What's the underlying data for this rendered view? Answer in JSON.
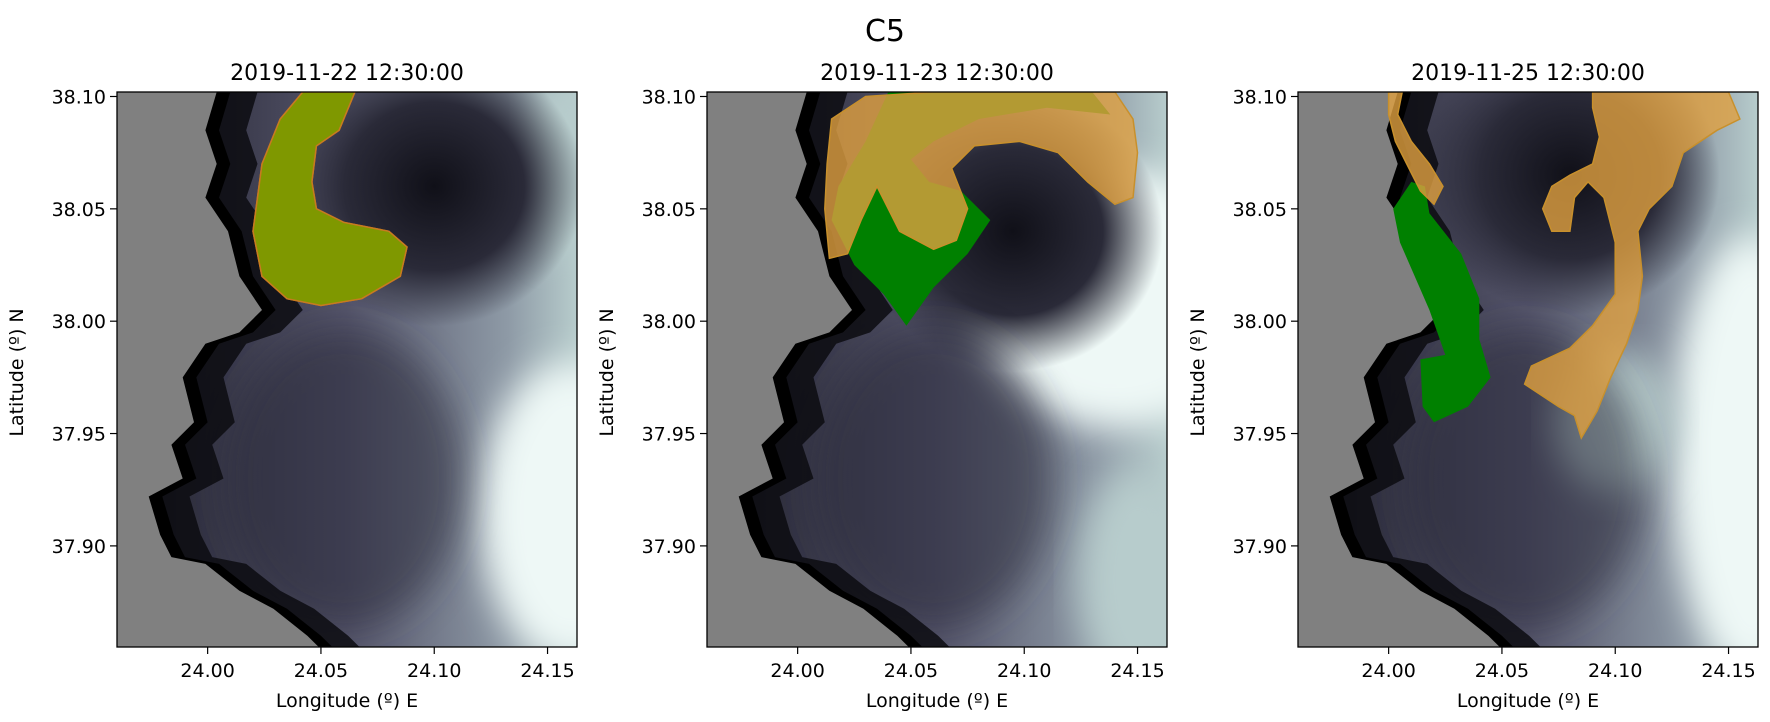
{
  "figure": {
    "suptitle": "C5",
    "xlabel": "Longitude (º) E",
    "ylabel": "Latitude (º) N",
    "colors": {
      "land": "#808080",
      "eddy_dark": "#1c1c26",
      "water_mid": "#55556b",
      "water_light": "#b7cccc",
      "water_lightest": "#eef8f6",
      "patch_green": "#008000",
      "patch_orange": "#e0a040",
      "patch_overlap": "#7f9800"
    }
  },
  "chart_data": [
    {
      "type": "map",
      "title": "2019-11-22 12:30:00",
      "xlim": [
        23.96,
        24.163
      ],
      "ylim": [
        37.855,
        38.102
      ],
      "xticks": [
        "24.00",
        "24.05",
        "24.10",
        "24.15"
      ],
      "yticks": [
        "37.90",
        "37.95",
        "38.00",
        "38.05",
        "38.10"
      ],
      "regions": [
        {
          "name": "green",
          "color": "#7f9800",
          "points": [
            [
              24.042,
              38.102
            ],
            [
              24.065,
              38.102
            ],
            [
              24.058,
              38.085
            ],
            [
              24.048,
              38.078
            ],
            [
              24.046,
              38.062
            ],
            [
              24.048,
              38.05
            ],
            [
              24.06,
              38.044
            ],
            [
              24.08,
              38.04
            ],
            [
              24.088,
              38.033
            ],
            [
              24.085,
              38.02
            ],
            [
              24.068,
              38.01
            ],
            [
              24.05,
              38.007
            ],
            [
              24.035,
              38.01
            ],
            [
              24.024,
              38.02
            ],
            [
              24.02,
              38.04
            ],
            [
              24.024,
              38.07
            ],
            [
              24.032,
              38.09
            ]
          ]
        },
        {
          "name": "orange",
          "color": "#7f9800",
          "points": [
            [
              24.042,
              38.102
            ],
            [
              24.065,
              38.102
            ],
            [
              24.058,
              38.085
            ],
            [
              24.048,
              38.078
            ],
            [
              24.046,
              38.062
            ],
            [
              24.048,
              38.05
            ],
            [
              24.06,
              38.044
            ],
            [
              24.08,
              38.04
            ],
            [
              24.088,
              38.033
            ],
            [
              24.085,
              38.02
            ],
            [
              24.068,
              38.01
            ],
            [
              24.05,
              38.007
            ],
            [
              24.035,
              38.01
            ],
            [
              24.024,
              38.02
            ],
            [
              24.02,
              38.04
            ],
            [
              24.024,
              38.07
            ],
            [
              24.032,
              38.09
            ]
          ]
        }
      ]
    },
    {
      "type": "map",
      "title": "2019-11-23 12:30:00",
      "xlim": [
        23.96,
        24.163
      ],
      "ylim": [
        37.855,
        38.102
      ],
      "xticks": [
        "24.00",
        "24.05",
        "24.10",
        "24.15"
      ],
      "yticks": [
        "37.90",
        "37.95",
        "38.00",
        "38.05",
        "38.10"
      ],
      "regions": [
        {
          "name": "green",
          "color": "#008000",
          "points": [
            [
              24.04,
              38.102
            ],
            [
              24.13,
              38.102
            ],
            [
              24.138,
              38.092
            ],
            [
              24.11,
              38.095
            ],
            [
              24.08,
              38.09
            ],
            [
              24.06,
              38.08
            ],
            [
              24.05,
              38.072
            ],
            [
              24.058,
              38.062
            ],
            [
              24.072,
              38.058
            ],
            [
              24.085,
              38.045
            ],
            [
              24.075,
              38.03
            ],
            [
              24.06,
              38.015
            ],
            [
              24.048,
              37.998
            ],
            [
              24.038,
              38.012
            ],
            [
              24.025,
              38.025
            ],
            [
              24.015,
              38.045
            ],
            [
              24.018,
              38.06
            ],
            [
              24.03,
              38.08
            ]
          ]
        },
        {
          "name": "orange",
          "color": "#e0a040",
          "points": [
            [
              24.015,
              38.09
            ],
            [
              24.03,
              38.1
            ],
            [
              24.06,
              38.102
            ],
            [
              24.1,
              38.102
            ],
            [
              24.14,
              38.102
            ],
            [
              24.148,
              38.09
            ],
            [
              24.15,
              38.075
            ],
            [
              24.148,
              38.055
            ],
            [
              24.14,
              38.052
            ],
            [
              24.128,
              38.062
            ],
            [
              24.115,
              38.075
            ],
            [
              24.098,
              38.08
            ],
            [
              24.078,
              38.078
            ],
            [
              24.068,
              38.068
            ],
            [
              24.075,
              38.05
            ],
            [
              24.07,
              38.036
            ],
            [
              24.06,
              38.032
            ],
            [
              24.045,
              38.04
            ],
            [
              24.035,
              38.06
            ],
            [
              24.028,
              38.045
            ],
            [
              24.022,
              38.03
            ],
            [
              24.014,
              38.028
            ],
            [
              24.012,
              38.05
            ],
            [
              24.013,
              38.07
            ]
          ]
        }
      ]
    },
    {
      "type": "map",
      "title": "2019-11-25 12:30:00",
      "xlim": [
        23.96,
        24.163
      ],
      "ylim": [
        37.855,
        38.102
      ],
      "xticks": [
        "24.00",
        "24.05",
        "24.10",
        "24.15"
      ],
      "yticks": [
        "37.90",
        "37.95",
        "38.00",
        "38.05",
        "38.10"
      ],
      "regions": [
        {
          "name": "green",
          "color": "#008000",
          "points": [
            [
              24.01,
              38.062
            ],
            [
              24.016,
              38.06
            ],
            [
              24.018,
              38.048
            ],
            [
              24.032,
              38.03
            ],
            [
              24.04,
              38.01
            ],
            [
              24.04,
              37.992
            ],
            [
              24.045,
              37.975
            ],
            [
              24.035,
              37.962
            ],
            [
              24.02,
              37.955
            ],
            [
              24.015,
              37.962
            ],
            [
              24.014,
              37.983
            ],
            [
              24.025,
              37.985
            ],
            [
              24.018,
              38.005
            ],
            [
              24.005,
              38.035
            ],
            [
              24.002,
              38.05
            ]
          ]
        },
        {
          "name": "orange-west",
          "color": "#e0a040",
          "points": [
            [
              24.0,
              38.102
            ],
            [
              24.006,
              38.102
            ],
            [
              24.004,
              38.092
            ],
            [
              24.01,
              38.08
            ],
            [
              24.018,
              38.07
            ],
            [
              24.024,
              38.06
            ],
            [
              24.02,
              38.052
            ],
            [
              24.014,
              38.058
            ],
            [
              24.009,
              38.068
            ],
            [
              24.003,
              38.08
            ],
            [
              24.0,
              38.092
            ]
          ]
        },
        {
          "name": "orange-east",
          "color": "#e0a040",
          "points": [
            [
              24.09,
              38.102
            ],
            [
              24.15,
              38.102
            ],
            [
              24.155,
              38.09
            ],
            [
              24.145,
              38.085
            ],
            [
              24.13,
              38.075
            ],
            [
              24.125,
              38.06
            ],
            [
              24.115,
              38.05
            ],
            [
              24.11,
              38.04
            ],
            [
              24.112,
              38.02
            ],
            [
              24.11,
              38.005
            ],
            [
              24.105,
              37.99
            ],
            [
              24.098,
              37.975
            ],
            [
              24.092,
              37.96
            ],
            [
              24.085,
              37.948
            ],
            [
              24.082,
              37.958
            ],
            [
              24.075,
              37.962
            ],
            [
              24.06,
              37.972
            ],
            [
              24.063,
              37.98
            ],
            [
              24.08,
              37.988
            ],
            [
              24.09,
              37.998
            ],
            [
              24.1,
              38.012
            ],
            [
              24.1,
              38.035
            ],
            [
              24.095,
              38.055
            ],
            [
              24.088,
              38.062
            ],
            [
              24.082,
              38.055
            ],
            [
              24.08,
              38.04
            ],
            [
              24.072,
              38.04
            ],
            [
              24.068,
              38.05
            ],
            [
              24.072,
              38.06
            ],
            [
              24.08,
              38.065
            ],
            [
              24.09,
              38.07
            ],
            [
              24.093,
              38.082
            ],
            [
              24.09,
              38.095
            ]
          ]
        }
      ]
    }
  ]
}
